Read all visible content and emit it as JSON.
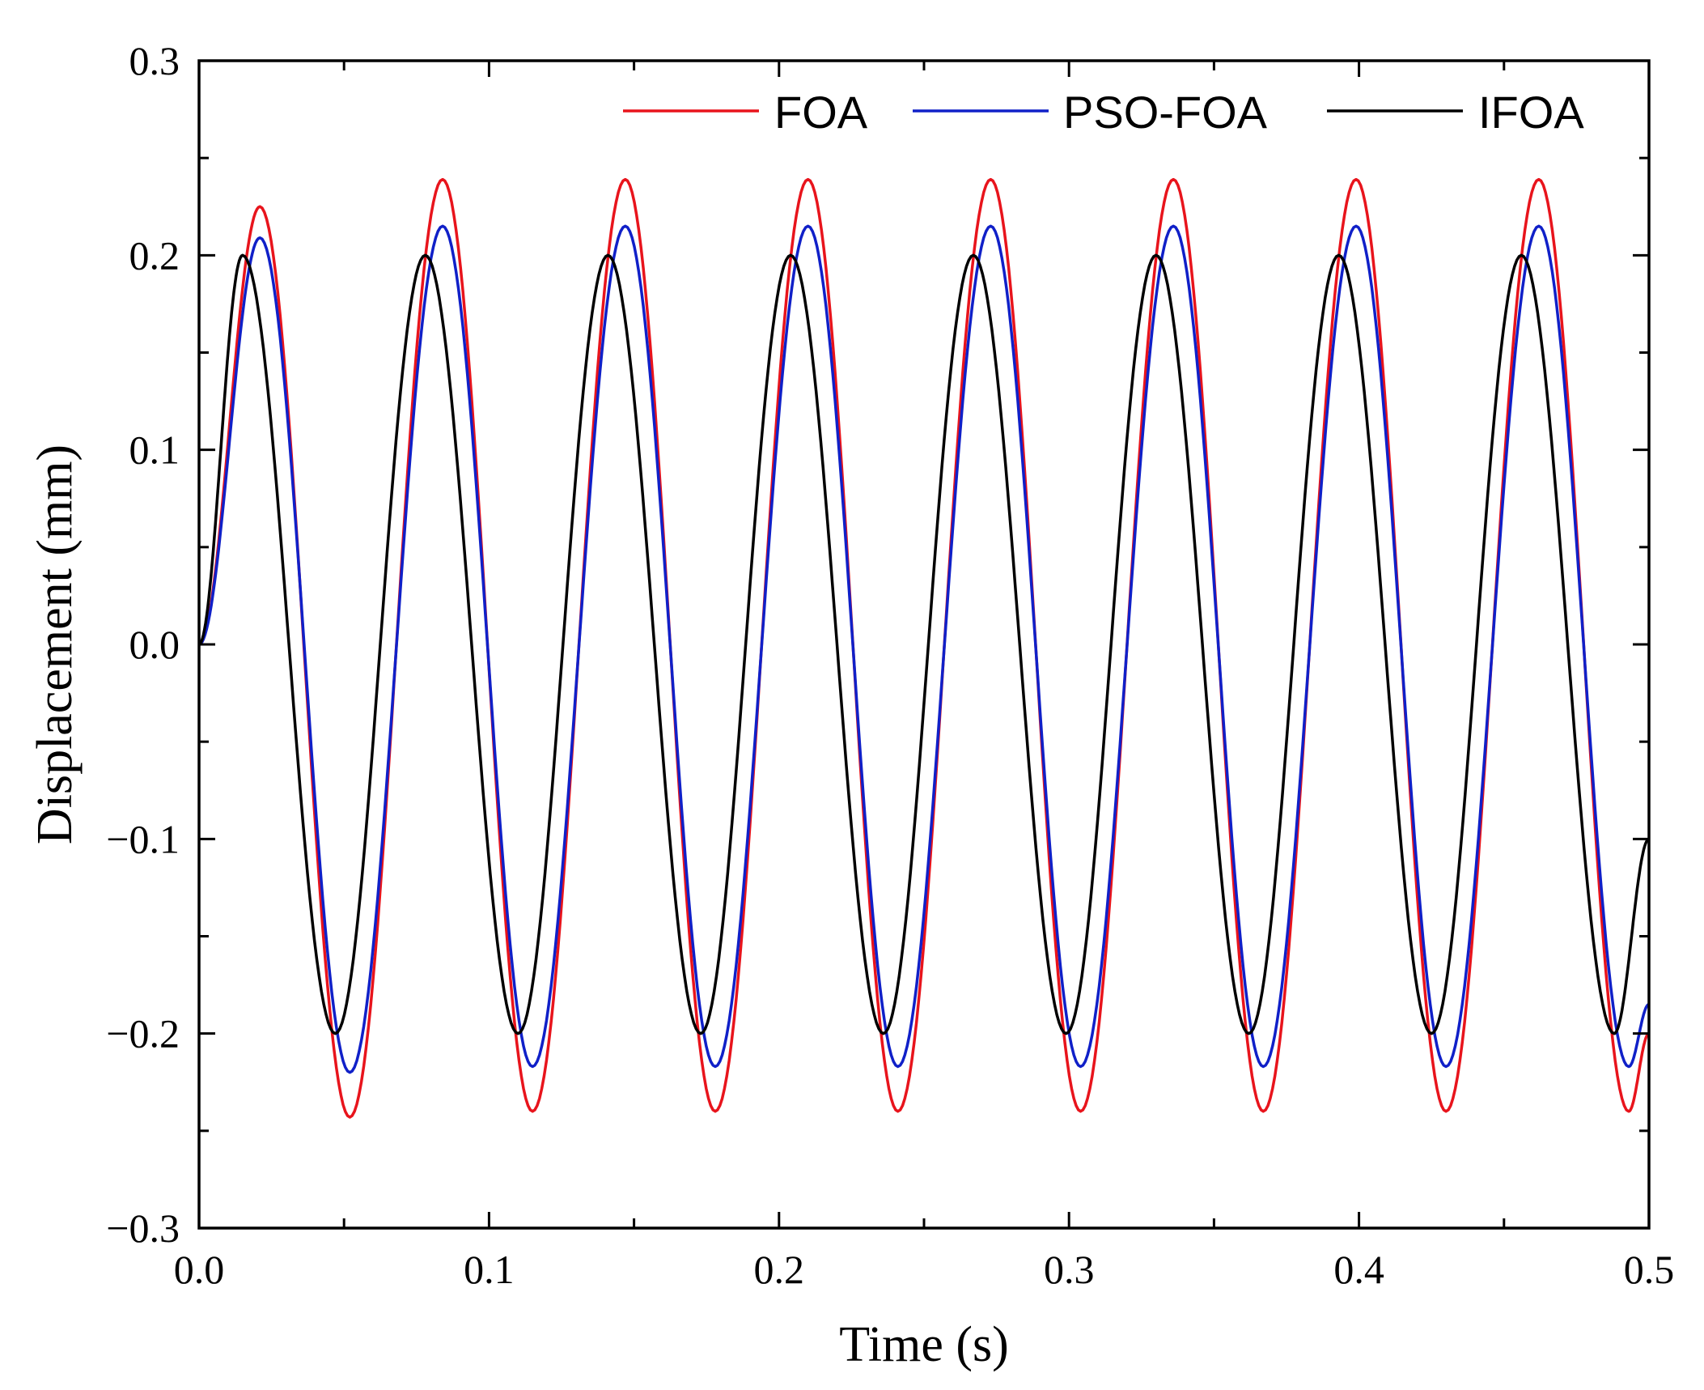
{
  "chart_data": {
    "type": "line",
    "title": "",
    "xlabel": "Time (s)",
    "ylabel": "Displacement (mm)",
    "xlim": [
      0.0,
      0.5
    ],
    "ylim": [
      -0.3,
      0.3
    ],
    "x_ticks": [
      0.0,
      0.1,
      0.2,
      0.3,
      0.4,
      0.5
    ],
    "x_tick_labels": [
      "0.0",
      "0.1",
      "0.2",
      "0.3",
      "0.4",
      "0.5"
    ],
    "y_ticks": [
      0.3,
      0.2,
      0.1,
      0.0,
      -0.1,
      -0.2,
      -0.3
    ],
    "y_tick_labels": [
      "0.3",
      "0.2",
      "0.1",
      "0.0",
      "−0.1",
      "−0.2",
      "−0.3"
    ],
    "grid": false,
    "legend_position": "top-right",
    "series": [
      {
        "name": "FOA",
        "color": "#e8141c",
        "samples": {
          "x": [
            0.0,
            0.021,
            0.052,
            0.084,
            0.115,
            0.147,
            0.178,
            0.21,
            0.241,
            0.273,
            0.304,
            0.336,
            0.367,
            0.399,
            0.43,
            0.462,
            0.493,
            0.5
          ],
          "y": [
            0.0,
            0.225,
            -0.243,
            0.239,
            -0.24,
            0.239,
            -0.24,
            0.239,
            -0.24,
            0.239,
            -0.24,
            0.239,
            -0.24,
            0.239,
            -0.24,
            0.239,
            -0.24,
            -0.2
          ]
        }
      },
      {
        "name": "PSO-FOA",
        "color": "#1020c8",
        "samples": {
          "x": [
            0.0,
            0.021,
            0.052,
            0.084,
            0.115,
            0.147,
            0.178,
            0.21,
            0.241,
            0.273,
            0.304,
            0.336,
            0.367,
            0.399,
            0.43,
            0.462,
            0.493,
            0.5
          ],
          "y": [
            0.0,
            0.209,
            -0.22,
            0.215,
            -0.217,
            0.215,
            -0.217,
            0.215,
            -0.217,
            0.215,
            -0.217,
            0.215,
            -0.217,
            0.215,
            -0.217,
            0.215,
            -0.217,
            -0.185
          ]
        }
      },
      {
        "name": "IFOA",
        "color": "#000000",
        "samples": {
          "x": [
            0.0,
            0.015,
            0.047,
            0.078,
            0.11,
            0.141,
            0.173,
            0.204,
            0.236,
            0.267,
            0.299,
            0.33,
            0.362,
            0.393,
            0.425,
            0.456,
            0.488,
            0.5
          ],
          "y": [
            0.0,
            0.2,
            -0.2,
            0.2,
            -0.2,
            0.2,
            -0.2,
            0.2,
            -0.2,
            0.2,
            -0.2,
            0.2,
            -0.2,
            0.2,
            -0.2,
            0.2,
            -0.2,
            -0.1
          ]
        }
      }
    ]
  }
}
